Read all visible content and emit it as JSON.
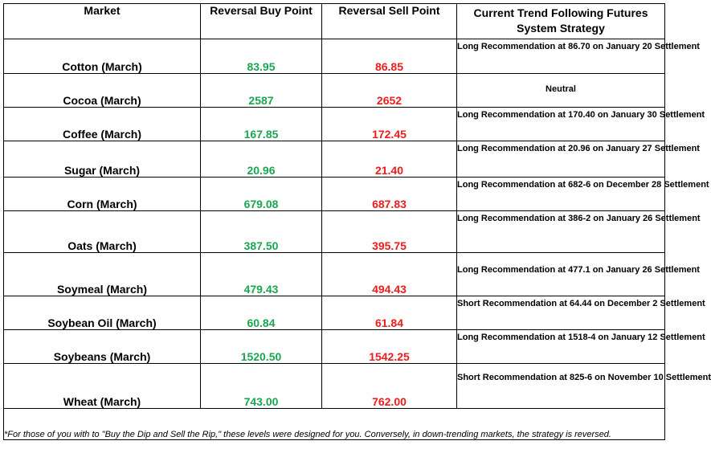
{
  "columns": {
    "market": "Market",
    "buy": "Reversal Buy Point",
    "sell": "Reversal Sell Point",
    "trend": "Current Trend Following Futures System Strategy"
  },
  "rows": [
    {
      "market": "Cotton (March)",
      "buy": "83.95",
      "sell": "86.85",
      "trend": "Long Recommendation at 86.70 on January 20 Settlement"
    },
    {
      "market": "Cocoa (March)",
      "buy": "2587",
      "sell": "2652",
      "trend": "Neutral"
    },
    {
      "market": "Coffee (March)",
      "buy": "167.85",
      "sell": "172.45",
      "trend": "Long Recommendation at 170.40 on January 30 Settlement"
    },
    {
      "market": "Sugar (March)",
      "buy": "20.96",
      "sell": "21.40",
      "trend": "Long Recommendation at 20.96 on January 27 Settlement"
    },
    {
      "market": "Corn (March)",
      "buy": "679.08",
      "sell": "687.83",
      "trend": "Long Recommendation at 682-6 on December 28 Settlement"
    },
    {
      "market": "Oats (March)",
      "buy": "387.50",
      "sell": "395.75",
      "trend": "Long Recommendation at 386-2 on January 26 Settlement"
    },
    {
      "market": "Soymeal (March)",
      "buy": "479.43",
      "sell": "494.43",
      "trend": "Long Recommendation at 477.1 on January 26 Settlement"
    },
    {
      "market": "Soybean Oil (March)",
      "buy": "60.84",
      "sell": "61.84",
      "trend": "Short Recommendation at 64.44 on December 2 Settlement"
    },
    {
      "market": "Soybeans (March)",
      "buy": "1520.50",
      "sell": "1542.25",
      "trend": "Long Recommendation at 1518-4 on January 12 Settlement"
    },
    {
      "market": "Wheat (March)",
      "buy": "743.00",
      "sell": "762.00",
      "trend": "Short Recommendation at 825-6 on November 10 Settlement"
    }
  ],
  "footnote": "*For those of you with to \"Buy the Dip and Sell the Rip,\" these levels were designed for you. Conversely, in down-trending markets, the strategy is reversed.",
  "colors": {
    "buy": "#1aa650",
    "sell": "#ee1c1c",
    "text": "#000000",
    "border": "#000000"
  }
}
